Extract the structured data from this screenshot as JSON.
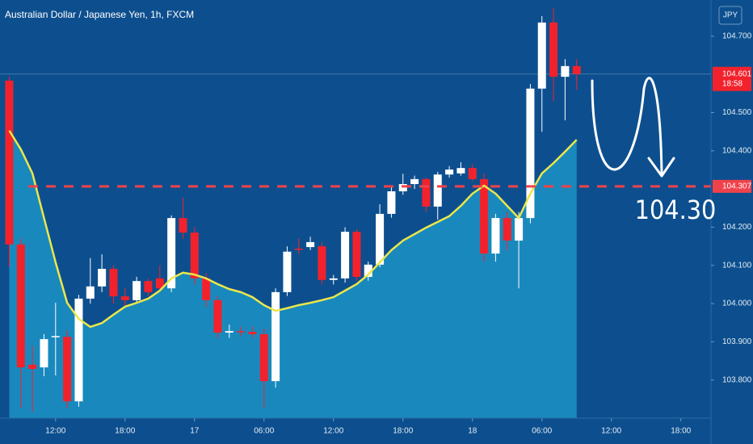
{
  "chart_data": {
    "type": "candlestick",
    "title": "Australian Dollar / Japanese Yen, 1h, FXCM",
    "currency": "JPY",
    "annotation": "104.30",
    "countdown": "18:58",
    "last_price": {
      "value": 104.601,
      "label": "104.601"
    },
    "level": {
      "value": 104.307,
      "label": "104.307"
    },
    "x": [
      8,
      9,
      10,
      11,
      12,
      13,
      14,
      15,
      16,
      17,
      18,
      19,
      20,
      21,
      22,
      23,
      24,
      25,
      26,
      27,
      28,
      29,
      30,
      31,
      32,
      33,
      34,
      35,
      36,
      37,
      38,
      39,
      40,
      41,
      42,
      43,
      44,
      45,
      46,
      47,
      48,
      49,
      50,
      51,
      52,
      53,
      54,
      55,
      56,
      57
    ],
    "open": [
      104.584,
      104.155,
      103.84,
      103.833,
      103.913,
      103.913,
      103.744,
      104.013,
      104.045,
      104.091,
      104.019,
      104.009,
      104.059,
      104.066,
      104.04,
      104.224,
      104.186,
      104.066,
      104.009,
      103.924,
      103.928,
      103.926,
      103.92,
      103.797,
      104.03,
      104.144,
      104.148,
      104.15,
      104.062,
      104.066,
      104.188,
      104.07,
      104.102,
      104.235,
      104.294,
      104.313,
      104.326,
      104.254,
      104.338,
      104.341,
      104.355,
      104.326,
      104.131,
      104.224,
      104.165,
      104.224,
      104.563,
      104.736,
      104.594,
      104.622
    ],
    "high": [
      104.594,
      104.17,
      103.89,
      103.92,
      104.002,
      103.93,
      104.023,
      104.119,
      104.129,
      104.1,
      104.04,
      104.07,
      104.065,
      104.1,
      104.231,
      104.277,
      104.2,
      104.08,
      104.02,
      103.945,
      103.94,
      103.94,
      103.935,
      104.04,
      104.15,
      104.17,
      104.175,
      104.16,
      104.075,
      104.2,
      104.195,
      104.11,
      104.26,
      104.31,
      104.34,
      104.335,
      104.33,
      104.345,
      104.36,
      104.37,
      104.365,
      104.34,
      104.235,
      104.24,
      104.24,
      104.575,
      104.753,
      104.775,
      104.64,
      104.64
    ],
    "low": [
      104.097,
      103.727,
      103.717,
      103.81,
      103.812,
      103.727,
      103.73,
      104.0,
      104.03,
      104.0,
      103.995,
      104.0,
      104.02,
      104.03,
      104.03,
      104.17,
      104.05,
      103.99,
      103.91,
      103.91,
      103.915,
      103.91,
      103.727,
      103.78,
      104.02,
      104.13,
      104.14,
      104.05,
      104.05,
      104.055,
      104.06,
      104.06,
      104.095,
      104.225,
      104.285,
      104.3,
      104.24,
      104.22,
      104.33,
      104.335,
      104.32,
      104.11,
      104.11,
      104.14,
      104.04,
      104.21,
      104.45,
      104.53,
      104.48,
      104.56
    ],
    "close": [
      104.155,
      103.833,
      103.829,
      103.907,
      103.915,
      103.744,
      104.013,
      104.045,
      104.091,
      104.019,
      104.009,
      104.059,
      104.03,
      104.04,
      104.224,
      104.186,
      104.066,
      104.009,
      103.924,
      103.928,
      103.926,
      103.92,
      103.797,
      104.03,
      104.136,
      104.142,
      104.161,
      104.062,
      104.066,
      104.188,
      104.07,
      104.102,
      104.235,
      104.294,
      104.313,
      104.326,
      104.254,
      104.338,
      104.351,
      104.355,
      104.326,
      104.131,
      104.224,
      104.165,
      104.224,
      104.563,
      104.736,
      104.594,
      104.622,
      104.601
    ],
    "ma": [
      104.453,
      104.404,
      104.341,
      104.224,
      104.108,
      104.002,
      103.96,
      103.939,
      103.949,
      103.971,
      103.992,
      104.002,
      104.013,
      104.034,
      104.066,
      104.081,
      104.076,
      104.066,
      104.051,
      104.038,
      104.03,
      104.017,
      103.996,
      103.981,
      103.988,
      103.996,
      104.002,
      104.009,
      104.017,
      104.034,
      104.051,
      104.076,
      104.108,
      104.14,
      104.165,
      104.182,
      104.199,
      104.214,
      104.229,
      104.256,
      104.288,
      104.309,
      104.288,
      104.256,
      104.224,
      104.288,
      104.341,
      104.368,
      104.398,
      104.429
    ],
    "up_color": "#ffffff",
    "down_color": "#f2222c",
    "ma_color": "#ece64a",
    "area_color": "#1b8fc2",
    "level_color": "#f0424a",
    "xlim": [
      7.2,
      68.6
    ],
    "ylim": [
      103.7,
      104.795
    ],
    "xticks": [
      {
        "value": 12,
        "label": "12:00"
      },
      {
        "value": 18,
        "label": "18:00"
      },
      {
        "value": 24,
        "label": "17"
      },
      {
        "value": 30,
        "label": "06:00"
      },
      {
        "value": 36,
        "label": "12:00"
      },
      {
        "value": 42,
        "label": "18:00"
      },
      {
        "value": 48,
        "label": "18"
      },
      {
        "value": 54,
        "label": "06:00"
      },
      {
        "value": 60,
        "label": "12:00"
      },
      {
        "value": 66,
        "label": "18:00"
      }
    ],
    "yticks": [
      {
        "value": 103.8,
        "label": "103.800"
      },
      {
        "value": 103.9,
        "label": "103.900"
      },
      {
        "value": 104.0,
        "label": "104.000"
      },
      {
        "value": 104.1,
        "label": "104.100"
      },
      {
        "value": 104.2,
        "label": "104.200"
      },
      {
        "value": 104.4,
        "label": "104.400"
      },
      {
        "value": 104.5,
        "label": "104.500"
      },
      {
        "value": 104.7,
        "label": "104.700"
      }
    ]
  }
}
